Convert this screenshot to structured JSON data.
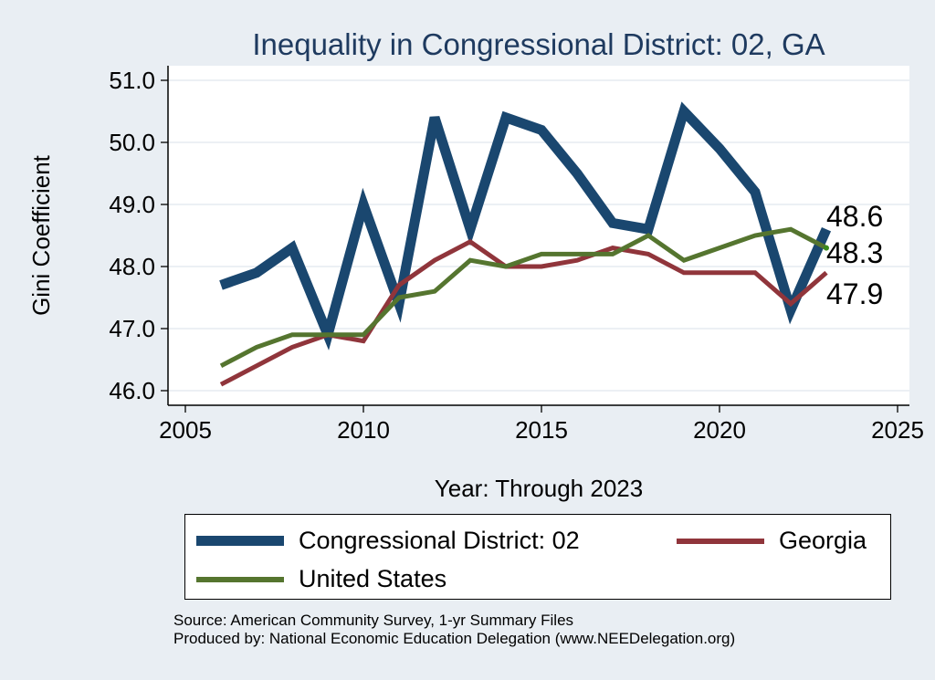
{
  "chart_data": {
    "type": "line",
    "title": "Inequality in Congressional District:  02, GA",
    "xlabel": "Year: Through 2023",
    "ylabel": "Gini Coefficient",
    "xlim": [
      2005,
      2025
    ],
    "ylim": [
      46.0,
      51.0
    ],
    "xticks": [
      "2005",
      "2010",
      "2015",
      "2020",
      "2025"
    ],
    "yticks": [
      "46.0",
      "47.0",
      "48.0",
      "49.0",
      "50.0",
      "51.0"
    ],
    "grid": true,
    "legend_position": "bottom",
    "x": [
      2006,
      2007,
      2008,
      2009,
      2010,
      2011,
      2012,
      2013,
      2014,
      2015,
      2016,
      2017,
      2018,
      2019,
      2020,
      2021,
      2022,
      2023
    ],
    "series": [
      {
        "name": "Congressional District:  02",
        "color": "#1a476f",
        "values": [
          47.7,
          47.9,
          48.3,
          46.9,
          49.0,
          47.4,
          50.4,
          48.6,
          50.4,
          50.2,
          49.5,
          48.7,
          48.6,
          50.5,
          49.9,
          49.2,
          47.3,
          48.6
        ]
      },
      {
        "name": "Georgia",
        "color": "#90353b",
        "values": [
          46.1,
          46.4,
          46.7,
          46.9,
          46.8,
          47.7,
          48.1,
          48.4,
          48.0,
          48.0,
          48.1,
          48.3,
          48.2,
          47.9,
          47.9,
          47.9,
          47.4,
          47.9
        ]
      },
      {
        "name": "United States",
        "color": "#55752f",
        "values": [
          46.4,
          46.7,
          46.9,
          46.9,
          46.9,
          47.5,
          47.6,
          48.1,
          48.0,
          48.2,
          48.2,
          48.2,
          48.5,
          48.1,
          48.3,
          48.5,
          48.6,
          48.3
        ]
      }
    ],
    "end_labels": [
      {
        "series": "Congressional District:  02",
        "text": "48.6"
      },
      {
        "series": "United States",
        "text": "48.3"
      },
      {
        "series": "Georgia",
        "text": "47.9"
      }
    ]
  },
  "legend": {
    "items": [
      {
        "label": "Congressional District:  02",
        "color": "#1a476f"
      },
      {
        "label": "Georgia",
        "color": "#90353b"
      },
      {
        "label": "United States",
        "color": "#55752f"
      }
    ]
  },
  "source": {
    "line1": "Source: American Community Survey, 1-yr Summary Files",
    "line2": "Produced by: National Economic Education Delegation (www.NEEDelegation.org)"
  }
}
